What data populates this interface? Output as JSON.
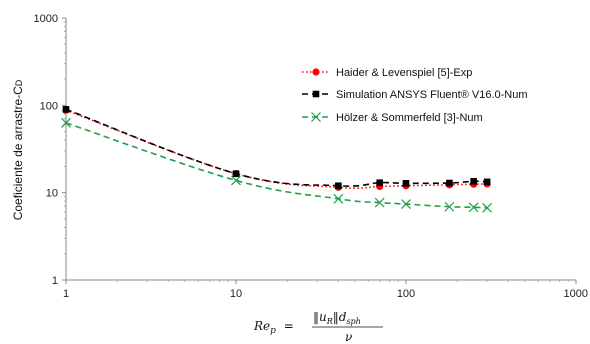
{
  "chart_data": {
    "type": "line",
    "xscale": "log",
    "yscale": "log",
    "xlim": [
      1,
      1000
    ],
    "ylim": [
      1,
      1000
    ],
    "x_ticks": [
      "1",
      "10",
      "100",
      "1000"
    ],
    "y_ticks": [
      "1",
      "10",
      "100",
      "1000"
    ],
    "ylabel": "Coeficiente de arrastre-C",
    "ylabel_subscript": "D",
    "xlabel": {
      "lhs": "Re",
      "lhs_sub": "p",
      "eq": "=",
      "numerator": "‖u",
      "numerator_sub": "R",
      "numerator_tail": "‖d",
      "numerator_tail_sub": "sph",
      "denominator": "ν"
    },
    "grid": false,
    "legend_position": "center-right",
    "series": [
      {
        "name": "Haider & Levenspiel [5]-Exp",
        "color": "#ff0000",
        "line_style": "dotted",
        "marker": "circle",
        "x": [
          1,
          10,
          40,
          70,
          100,
          180,
          250,
          300
        ],
        "y": [
          88,
          16.5,
          11.5,
          11.8,
          12.0,
          12.3,
          12.5,
          12.6
        ]
      },
      {
        "name": "Simulation ANSYS Fluent® V16.0-Num",
        "color": "#000000",
        "line_style": "dashed",
        "marker": "square",
        "x": [
          1,
          10,
          40,
          70,
          100,
          180,
          250,
          300
        ],
        "y": [
          90,
          16.5,
          12.0,
          13.0,
          12.8,
          12.9,
          13.5,
          13.3
        ]
      },
      {
        "name": "Hölzer & Sommerfeld [3]-Num",
        "color": "#21a04a",
        "line_style": "dashed",
        "marker": "x",
        "x": [
          1,
          10,
          40,
          70,
          100,
          180,
          250,
          300
        ],
        "y": [
          63,
          13.8,
          8.5,
          7.7,
          7.4,
          6.9,
          6.8,
          6.7
        ]
      }
    ]
  }
}
